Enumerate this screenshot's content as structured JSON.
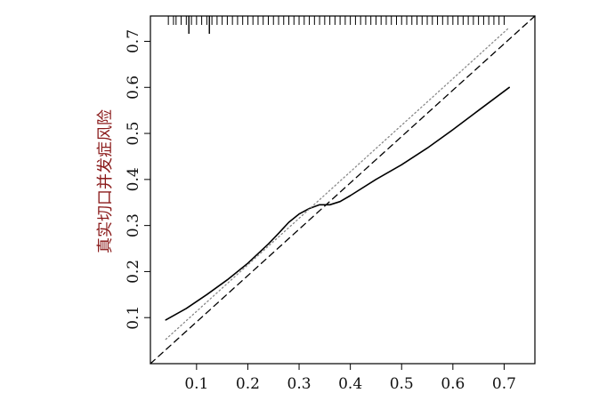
{
  "chart_data": {
    "type": "line",
    "title": "",
    "xlabel": "",
    "ylabel": "真实切口并发症风险",
    "xlim": [
      0.01,
      0.76
    ],
    "ylim": [
      0.0,
      0.755
    ],
    "x_ticks": [
      0.1,
      0.2,
      0.3,
      0.4,
      0.5,
      0.6,
      0.7
    ],
    "x_tick_labels": [
      "0.1",
      "0.2",
      "0.3",
      "0.4",
      "0.5",
      "0.6",
      "0.7"
    ],
    "y_ticks": [
      0.1,
      0.2,
      0.3,
      0.4,
      0.5,
      0.6,
      0.7
    ],
    "y_tick_labels": [
      "0.1",
      "0.2",
      "0.3",
      "0.4",
      "0.5",
      "0.6",
      "0.7"
    ],
    "grid": false,
    "legend": "none",
    "series": [
      {
        "style": "solid",
        "color": "#000000",
        "x": [
          0.04,
          0.08,
          0.12,
          0.16,
          0.2,
          0.24,
          0.26,
          0.28,
          0.3,
          0.32,
          0.34,
          0.36,
          0.38,
          0.4,
          0.45,
          0.5,
          0.55,
          0.6,
          0.65,
          0.71
        ],
        "y": [
          0.095,
          0.12,
          0.15,
          0.182,
          0.218,
          0.26,
          0.283,
          0.307,
          0.325,
          0.337,
          0.345,
          0.345,
          0.352,
          0.365,
          0.4,
          0.432,
          0.468,
          0.508,
          0.55,
          0.6
        ]
      },
      {
        "style": "dashed",
        "color": "#000000",
        "x": [
          0.01,
          0.76
        ],
        "y": [
          0.0,
          0.755
        ]
      },
      {
        "style": "dotted",
        "color": "#888888",
        "x": [
          0.04,
          0.71
        ],
        "y": [
          0.053,
          0.73
        ]
      }
    ],
    "rug_x": [
      0.045,
      0.055,
      0.06,
      0.07,
      0.08,
      0.09,
      0.1,
      0.11,
      0.12,
      0.13,
      0.14,
      0.15,
      0.16,
      0.17,
      0.18,
      0.19,
      0.2,
      0.21,
      0.22,
      0.23,
      0.24,
      0.25,
      0.26,
      0.27,
      0.28,
      0.29,
      0.3,
      0.31,
      0.32,
      0.33,
      0.34,
      0.35,
      0.36,
      0.37,
      0.38,
      0.39,
      0.4,
      0.41,
      0.42,
      0.43,
      0.44,
      0.45,
      0.46,
      0.47,
      0.48,
      0.49,
      0.5,
      0.51,
      0.52,
      0.53,
      0.54,
      0.55,
      0.56,
      0.57,
      0.58,
      0.59,
      0.6,
      0.61,
      0.62,
      0.63,
      0.64,
      0.65,
      0.66,
      0.67,
      0.68,
      0.69,
      0.7
    ],
    "rug_tall_x": [
      0.085,
      0.125
    ]
  }
}
